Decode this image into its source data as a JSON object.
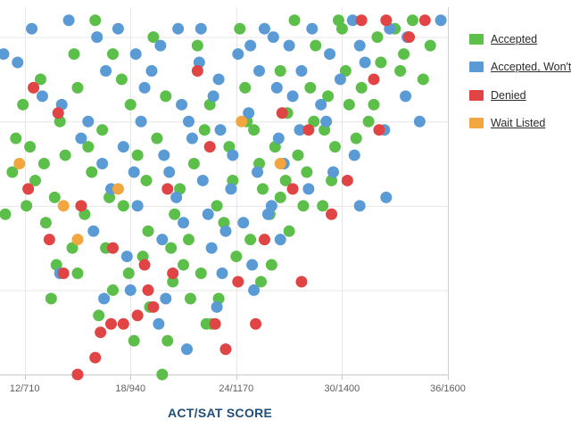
{
  "chart_data": {
    "type": "scatter",
    "xlabel": "ACT/SAT SCORE",
    "x_tick_labels": [
      "12/710",
      "18/940",
      "24/1170",
      "30/1400",
      "36/1600"
    ],
    "x_ticks": [
      12,
      18,
      24,
      30,
      36
    ],
    "xlim": [
      10.6,
      36
    ],
    "ylim": [
      0,
      4.25
    ],
    "grid": true,
    "legend": "right",
    "legend_entries": [
      {
        "name": "Accepted",
        "color": "#5cbf4a"
      },
      {
        "name": "Accepted, Won't Attend",
        "color": "#5b9bd5"
      },
      {
        "name": "Denied",
        "color": "#e04444"
      },
      {
        "name": "Wait Listed",
        "color": "#f2a640"
      }
    ],
    "series": [
      {
        "name": "Accepted",
        "color": "#5cbf4a",
        "points": [
          [
            19.8,
            0.0
          ],
          [
            18.2,
            0.4
          ],
          [
            20.1,
            0.4
          ],
          [
            22.3,
            0.6
          ],
          [
            19.1,
            0.8
          ],
          [
            22.6,
            0.6
          ],
          [
            21.4,
            0.9
          ],
          [
            23.0,
            0.9
          ],
          [
            25.4,
            1.1
          ],
          [
            20.4,
            1.1
          ],
          [
            16.2,
            0.7
          ],
          [
            13.5,
            0.9
          ],
          [
            15.0,
            1.2
          ],
          [
            17.0,
            1.0
          ],
          [
            21.0,
            1.3
          ],
          [
            24.0,
            1.4
          ],
          [
            26.0,
            1.3
          ],
          [
            14.7,
            1.5
          ],
          [
            13.8,
            1.3
          ],
          [
            16.6,
            1.5
          ],
          [
            18.7,
            1.4
          ],
          [
            22.0,
            1.2
          ],
          [
            24.8,
            1.6
          ],
          [
            27.0,
            1.7
          ],
          [
            28.9,
            2.0
          ],
          [
            12.1,
            2.0
          ],
          [
            13.2,
            1.8
          ],
          [
            10.9,
            1.9
          ],
          [
            15.4,
            1.9
          ],
          [
            17.6,
            2.0
          ],
          [
            20.5,
            1.9
          ],
          [
            22.9,
            2.0
          ],
          [
            25.5,
            2.2
          ],
          [
            26.8,
            2.3
          ],
          [
            27.8,
            2.0
          ],
          [
            28.0,
            2.4
          ],
          [
            29.6,
            2.7
          ],
          [
            31.5,
            3.0
          ],
          [
            30.4,
            3.2
          ],
          [
            11.9,
            3.2
          ],
          [
            11.5,
            2.8
          ],
          [
            13.1,
            2.5
          ],
          [
            12.6,
            2.3
          ],
          [
            14.3,
            2.6
          ],
          [
            15.8,
            2.4
          ],
          [
            16.4,
            2.9
          ],
          [
            18.4,
            2.6
          ],
          [
            19.5,
            2.8
          ],
          [
            21.6,
            2.5
          ],
          [
            23.6,
            2.7
          ],
          [
            25.0,
            2.9
          ],
          [
            26.2,
            2.7
          ],
          [
            28.4,
            3.0
          ],
          [
            29.2,
            3.3
          ],
          [
            31.1,
            3.4
          ],
          [
            32.2,
            3.7
          ],
          [
            33.5,
            3.8
          ],
          [
            34.6,
            3.5
          ],
          [
            35.0,
            3.9
          ],
          [
            33.3,
            3.6
          ],
          [
            32.0,
            4.0
          ],
          [
            30.0,
            4.1
          ],
          [
            28.5,
            3.9
          ],
          [
            26.5,
            3.6
          ],
          [
            24.5,
            3.4
          ],
          [
            22.5,
            3.2
          ],
          [
            20.0,
            3.3
          ],
          [
            17.5,
            3.5
          ],
          [
            15.0,
            3.4
          ],
          [
            14.0,
            3.0
          ],
          [
            12.9,
            3.5
          ],
          [
            17.0,
            3.8
          ],
          [
            19.3,
            4.0
          ],
          [
            21.8,
            3.9
          ],
          [
            24.2,
            4.1
          ],
          [
            27.3,
            4.2
          ],
          [
            29.8,
            4.2
          ],
          [
            16.0,
            4.2
          ],
          [
            18.0,
            3.2
          ],
          [
            20.8,
            2.2
          ],
          [
            23.3,
            1.8
          ],
          [
            25.9,
            1.9
          ],
          [
            27.5,
            2.6
          ],
          [
            29.0,
            2.9
          ],
          [
            30.8,
            2.8
          ],
          [
            13.7,
            2.1
          ],
          [
            11.3,
            2.4
          ],
          [
            14.8,
            3.8
          ],
          [
            16.8,
            2.1
          ],
          [
            19.0,
            1.7
          ],
          [
            21.3,
            1.6
          ],
          [
            23.8,
            2.3
          ],
          [
            25.3,
            2.5
          ],
          [
            26.9,
            3.1
          ],
          [
            28.2,
            3.4
          ],
          [
            30.2,
            3.6
          ],
          [
            31.8,
            3.2
          ],
          [
            33.0,
            4.1
          ],
          [
            34.0,
            4.2
          ],
          [
            12.3,
            2.7
          ],
          [
            22.2,
            2.9
          ],
          [
            18.9,
            2.3
          ],
          [
            24.6,
            3.0
          ],
          [
            15.6,
            2.7
          ],
          [
            20.3,
            1.5
          ],
          [
            17.9,
            1.2
          ],
          [
            26.5,
            2.1
          ],
          [
            29.4,
            2.3
          ]
        ]
      },
      {
        "name": "Accepted, Won't Attend",
        "color": "#5b9bd5",
        "points": [
          [
            21.2,
            0.3
          ],
          [
            19.6,
            0.6
          ],
          [
            22.9,
            0.8
          ],
          [
            18.0,
            1.0
          ],
          [
            16.5,
            0.9
          ],
          [
            25.0,
            1.0
          ],
          [
            17.8,
            1.4
          ],
          [
            22.6,
            1.5
          ],
          [
            24.9,
            1.3
          ],
          [
            19.8,
            1.6
          ],
          [
            21.0,
            1.8
          ],
          [
            23.4,
            1.7
          ],
          [
            25.8,
            1.9
          ],
          [
            15.9,
            1.7
          ],
          [
            16.9,
            2.2
          ],
          [
            18.4,
            2.0
          ],
          [
            20.6,
            2.1
          ],
          [
            22.1,
            2.3
          ],
          [
            23.7,
            2.2
          ],
          [
            25.2,
            2.4
          ],
          [
            26.7,
            2.5
          ],
          [
            27.6,
            2.9
          ],
          [
            28.8,
            3.2
          ],
          [
            29.9,
            3.5
          ],
          [
            31.3,
            3.7
          ],
          [
            33.7,
            4.0
          ],
          [
            35.6,
            4.2
          ],
          [
            32.7,
            4.1
          ],
          [
            31.0,
            3.9
          ],
          [
            29.3,
            3.8
          ],
          [
            27.7,
            3.6
          ],
          [
            26.3,
            3.4
          ],
          [
            24.7,
            3.1
          ],
          [
            23.1,
            2.9
          ],
          [
            21.5,
            2.8
          ],
          [
            19.9,
            2.6
          ],
          [
            18.2,
            2.4
          ],
          [
            16.4,
            2.5
          ],
          [
            15.2,
            2.8
          ],
          [
            14.1,
            3.2
          ],
          [
            13.0,
            3.3
          ],
          [
            11.6,
            3.7
          ],
          [
            10.8,
            3.8
          ],
          [
            12.4,
            4.1
          ],
          [
            14.5,
            4.2
          ],
          [
            17.3,
            4.1
          ],
          [
            19.7,
            3.9
          ],
          [
            21.9,
            3.7
          ],
          [
            24.1,
            3.8
          ],
          [
            26.1,
            4.0
          ],
          [
            28.3,
            4.1
          ],
          [
            30.6,
            4.2
          ],
          [
            16.6,
            3.6
          ],
          [
            18.8,
            3.4
          ],
          [
            20.9,
            3.2
          ],
          [
            23.0,
            3.5
          ],
          [
            25.3,
            3.6
          ],
          [
            27.2,
            3.3
          ],
          [
            29.1,
            3.0
          ],
          [
            30.7,
            2.6
          ],
          [
            32.4,
            2.9
          ],
          [
            33.6,
            3.3
          ],
          [
            34.4,
            3.0
          ],
          [
            32.5,
            2.1
          ],
          [
            31.0,
            2.0
          ],
          [
            28.1,
            2.2
          ],
          [
            26.0,
            2.0
          ],
          [
            24.4,
            1.8
          ],
          [
            22.4,
            1.9
          ],
          [
            20.2,
            2.4
          ],
          [
            17.6,
            2.7
          ],
          [
            15.6,
            3.0
          ],
          [
            18.6,
            3.0
          ],
          [
            21.3,
            3.0
          ],
          [
            23.8,
            2.6
          ],
          [
            26.4,
            2.8
          ],
          [
            22.7,
            3.3
          ],
          [
            19.2,
            3.6
          ],
          [
            24.8,
            3.9
          ],
          [
            27.0,
            3.9
          ],
          [
            20.7,
            4.1
          ],
          [
            18.3,
            3.8
          ],
          [
            16.1,
            4.0
          ],
          [
            22.0,
            4.1
          ],
          [
            25.6,
            4.1
          ],
          [
            14.0,
            1.2
          ],
          [
            23.2,
            1.2
          ],
          [
            20.0,
            0.9
          ],
          [
            26.5,
            1.6
          ],
          [
            29.5,
            2.4
          ]
        ]
      },
      {
        "name": "Denied",
        "color": "#e04444",
        "points": [
          [
            15.0,
            0.0
          ],
          [
            16.0,
            0.2
          ],
          [
            16.3,
            0.5
          ],
          [
            17.6,
            0.6
          ],
          [
            18.4,
            0.7
          ],
          [
            19.3,
            0.8
          ],
          [
            20.4,
            1.2
          ],
          [
            22.8,
            0.6
          ],
          [
            23.4,
            0.3
          ],
          [
            25.1,
            0.6
          ],
          [
            24.1,
            1.1
          ],
          [
            25.6,
            1.6
          ],
          [
            27.7,
            1.1
          ],
          [
            16.9,
            0.6
          ],
          [
            18.8,
            1.3
          ],
          [
            17.0,
            1.5
          ],
          [
            13.4,
            1.6
          ],
          [
            12.2,
            2.2
          ],
          [
            13.9,
            3.1
          ],
          [
            29.4,
            1.9
          ],
          [
            28.1,
            2.9
          ],
          [
            30.3,
            2.3
          ],
          [
            32.1,
            2.9
          ],
          [
            31.8,
            3.5
          ],
          [
            34.7,
            4.2
          ],
          [
            33.8,
            4.0
          ],
          [
            32.5,
            4.2
          ],
          [
            31.1,
            4.2
          ],
          [
            26.6,
            3.1
          ],
          [
            22.5,
            2.7
          ],
          [
            20.1,
            2.2
          ],
          [
            15.2,
            2.0
          ],
          [
            12.5,
            3.4
          ],
          [
            21.8,
            3.6
          ],
          [
            27.2,
            2.2
          ],
          [
            19.0,
            1.0
          ],
          [
            14.2,
            1.2
          ]
        ]
      },
      {
        "name": "Wait Listed",
        "color": "#f2a640",
        "points": [
          [
            11.7,
            2.5
          ],
          [
            15.0,
            1.6
          ],
          [
            14.2,
            2.0
          ],
          [
            17.3,
            2.2
          ],
          [
            26.5,
            2.5
          ],
          [
            24.3,
            3.0
          ]
        ]
      }
    ]
  }
}
